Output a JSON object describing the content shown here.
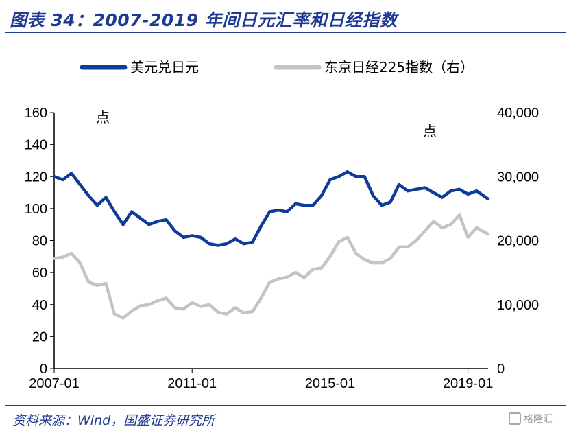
{
  "header": {
    "title": "图表 34：2007-2019 年间日元汇率和日经指数"
  },
  "footer": {
    "source": "资料来源：Wind，国盛证券研究所",
    "watermark": "格隆汇"
  },
  "colors": {
    "usdjpy": "#0f3b99",
    "nikkei": "#c4c4c4",
    "title": "#1f3a93"
  },
  "chart_data": {
    "type": "line",
    "x_ticks": [
      "2007-01",
      "2011-01",
      "2015-01",
      "2019-01"
    ],
    "x_range": [
      "2007-01",
      "2019-08"
    ],
    "left_axis": {
      "label": "点",
      "ylim": [
        0,
        160
      ],
      "ticks": [
        "0",
        "20",
        "40",
        "60",
        "80",
        "100",
        "120",
        "140",
        "160"
      ]
    },
    "right_axis": {
      "label": "点",
      "ylim": [
        0,
        40000
      ],
      "ticks": [
        "0",
        "10,000",
        "20,000",
        "30,000",
        "40,000"
      ]
    },
    "legend_position": "top",
    "grid": false,
    "series": [
      {
        "name": "美元兑日元",
        "axis": "left",
        "x": [
          "2007-01",
          "2007-04",
          "2007-07",
          "2007-10",
          "2008-01",
          "2008-04",
          "2008-07",
          "2008-10",
          "2009-01",
          "2009-04",
          "2009-07",
          "2009-10",
          "2010-01",
          "2010-04",
          "2010-07",
          "2010-10",
          "2011-01",
          "2011-04",
          "2011-07",
          "2011-10",
          "2012-01",
          "2012-04",
          "2012-07",
          "2012-10",
          "2013-01",
          "2013-04",
          "2013-07",
          "2013-10",
          "2014-01",
          "2014-04",
          "2014-07",
          "2014-10",
          "2015-01",
          "2015-04",
          "2015-07",
          "2015-10",
          "2016-01",
          "2016-04",
          "2016-07",
          "2016-10",
          "2017-01",
          "2017-04",
          "2017-07",
          "2017-10",
          "2018-01",
          "2018-04",
          "2018-07",
          "2018-10",
          "2019-01",
          "2019-04",
          "2019-08"
        ],
        "values": [
          120,
          118,
          122,
          115,
          108,
          102,
          107,
          98,
          90,
          98,
          94,
          90,
          92,
          93,
          86,
          82,
          83,
          82,
          78,
          77,
          78,
          81,
          78,
          79,
          89,
          98,
          99,
          98,
          103,
          102,
          102,
          108,
          118,
          120,
          123,
          120,
          120,
          108,
          102,
          104,
          115,
          111,
          112,
          113,
          110,
          107,
          111,
          112,
          109,
          111,
          106
        ]
      },
      {
        "name": "东京日经225指数（右）",
        "axis": "right",
        "x": [
          "2007-01",
          "2007-04",
          "2007-07",
          "2007-10",
          "2008-01",
          "2008-04",
          "2008-07",
          "2008-10",
          "2009-01",
          "2009-04",
          "2009-07",
          "2009-10",
          "2010-01",
          "2010-04",
          "2010-07",
          "2010-10",
          "2011-01",
          "2011-04",
          "2011-07",
          "2011-10",
          "2012-01",
          "2012-04",
          "2012-07",
          "2012-10",
          "2013-01",
          "2013-04",
          "2013-07",
          "2013-10",
          "2014-01",
          "2014-04",
          "2014-07",
          "2014-10",
          "2015-01",
          "2015-04",
          "2015-07",
          "2015-10",
          "2016-01",
          "2016-04",
          "2016-07",
          "2016-10",
          "2017-01",
          "2017-04",
          "2017-07",
          "2017-10",
          "2018-01",
          "2018-04",
          "2018-07",
          "2018-10",
          "2019-01",
          "2019-04",
          "2019-08"
        ],
        "values": [
          17200,
          17400,
          18000,
          16500,
          13500,
          13000,
          13300,
          8500,
          7900,
          9000,
          9800,
          10000,
          10600,
          11000,
          9500,
          9300,
          10300,
          9700,
          10000,
          8800,
          8500,
          9500,
          8700,
          8900,
          11000,
          13500,
          14000,
          14300,
          15000,
          14200,
          15500,
          15700,
          17500,
          19800,
          20500,
          18000,
          17000,
          16500,
          16500,
          17200,
          19000,
          19000,
          20000,
          21500,
          23000,
          22000,
          22500,
          24000,
          20500,
          22000,
          21000
        ]
      }
    ]
  }
}
